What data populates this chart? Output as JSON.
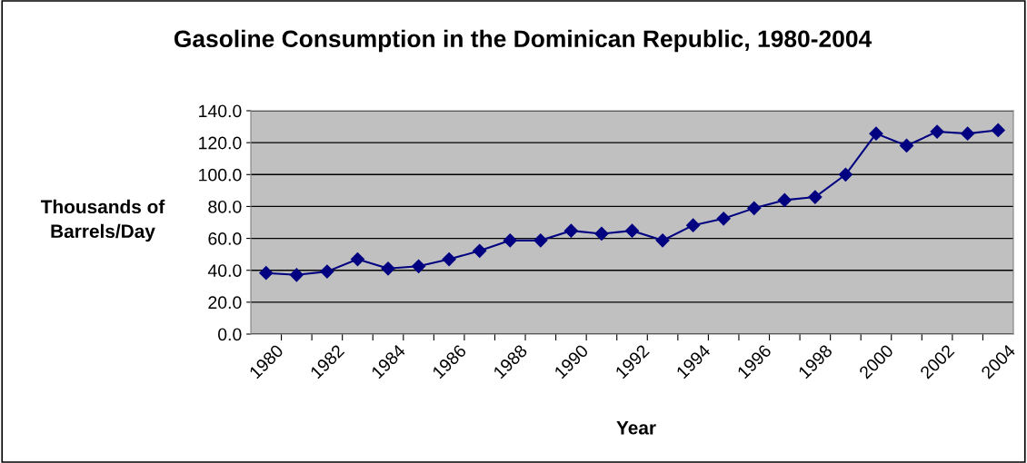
{
  "chart_data": {
    "type": "line",
    "title": "Gasoline Consumption in the Dominican Republic, 1980-2004",
    "xlabel": "Year",
    "ylabel": "Thousands of\nBarrels/Day",
    "categories": [
      "1980",
      null,
      "1982",
      null,
      "1984",
      null,
      "1986",
      null,
      "1988",
      null,
      "1990",
      null,
      "1992",
      null,
      "1994",
      null,
      "1996",
      null,
      "1998",
      null,
      "2000",
      null,
      "2002",
      null,
      "2004"
    ],
    "series": [
      {
        "color": "#000080",
        "values": [
          38.3,
          37.1,
          39.2,
          46.9,
          41.1,
          42.5,
          46.9,
          52.2,
          58.7,
          58.7,
          64.8,
          62.9,
          64.8,
          58.7,
          68.2,
          72.4,
          78.9,
          84.0,
          85.9,
          100.0,
          125.7,
          118.1,
          126.9,
          125.7,
          127.8
        ]
      }
    ],
    "ylim": [
      0,
      140
    ],
    "yticks": [
      {
        "value": 0,
        "label": "0.0"
      },
      {
        "value": 20,
        "label": "20.0"
      },
      {
        "value": 40,
        "label": "40.0"
      },
      {
        "value": 60,
        "label": "60.0"
      },
      {
        "value": 80,
        "label": "80.0"
      },
      {
        "value": 100,
        "label": "100.0"
      },
      {
        "value": 120,
        "label": "120.0"
      },
      {
        "value": 140,
        "label": "140.0"
      }
    ],
    "grid": "y",
    "marker": "diamond",
    "line_style": "solid"
  }
}
